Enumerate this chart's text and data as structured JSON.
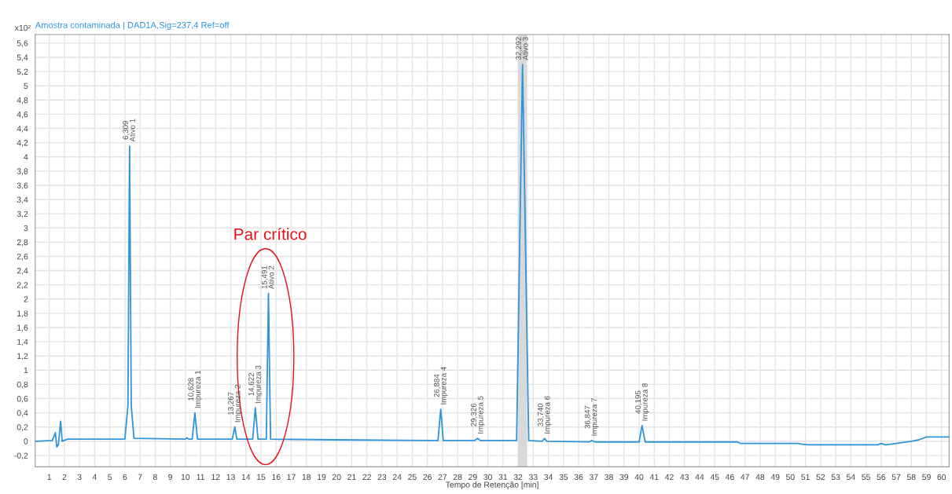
{
  "chart_data": {
    "type": "line",
    "title": "Amostra contaminada | DAD1A,Sig=237,4 Ref=off",
    "xlabel": "Tempo de Retenção [min]",
    "x": [
      0.1,
      1.2,
      1.4,
      1.5,
      1.6,
      1.75,
      1.85,
      2.2,
      6.0,
      6.2,
      6.309,
      6.42,
      6.6,
      10.0,
      10.1,
      10.2,
      10.45,
      10.628,
      10.8,
      13.1,
      13.267,
      13.4,
      14.45,
      14.622,
      14.8,
      15.35,
      15.491,
      15.63,
      20.0,
      26.7,
      26.884,
      27.05,
      29.1,
      29.326,
      29.5,
      31.9,
      32.292,
      32.7,
      33.6,
      33.74,
      33.9,
      36.7,
      36.847,
      37.1,
      40.0,
      40.195,
      40.4,
      46.5,
      46.7,
      50.5,
      50.7,
      51.2,
      55.8,
      56.0,
      56.3,
      57.0,
      58.0,
      58.5,
      59.0,
      60.5
    ],
    "series": [
      {
        "color": "#2f94d8",
        "values": [
          0.0,
          0.01,
          0.12,
          -0.08,
          -0.05,
          0.28,
          0.0,
          0.03,
          0.03,
          0.5,
          4.15,
          0.5,
          0.04,
          0.03,
          0.05,
          0.03,
          0.03,
          0.4,
          0.03,
          0.03,
          0.2,
          0.03,
          0.03,
          0.47,
          0.03,
          0.03,
          2.08,
          0.03,
          0.02,
          0.01,
          0.45,
          0.01,
          0.01,
          0.04,
          0.01,
          0.01,
          5.3,
          0.01,
          0.0,
          0.04,
          0.0,
          -0.01,
          0.01,
          -0.01,
          -0.01,
          0.22,
          -0.01,
          -0.01,
          -0.03,
          -0.03,
          -0.04,
          -0.05,
          -0.05,
          -0.03,
          -0.05,
          -0.03,
          0.0,
          0.02,
          0.06,
          0.06
        ]
      }
    ],
    "xlim": [
      0.07,
      60.5
    ],
    "ylim": [
      -0.36,
      5.72
    ],
    "xticks": [
      1,
      2,
      3,
      4,
      5,
      6,
      7,
      8,
      9,
      10,
      11,
      12,
      13,
      14,
      15,
      16,
      17,
      18,
      19,
      20,
      21,
      22,
      23,
      24,
      25,
      26,
      27,
      28,
      29,
      30,
      31,
      32,
      33,
      34,
      35,
      36,
      37,
      38,
      39,
      40,
      41,
      42,
      43,
      44,
      45,
      46,
      47,
      48,
      49,
      50,
      51,
      52,
      53,
      54,
      55,
      56,
      57,
      58,
      59,
      60
    ],
    "yticks": [
      {
        "value": -0.2,
        "label": "-0,2"
      },
      0,
      {
        "value": 0.2,
        "label": "0,2"
      },
      {
        "value": 0.4,
        "label": "0,4"
      },
      {
        "value": 0.6,
        "label": "0,6"
      },
      {
        "value": 0.8,
        "label": "0,8"
      },
      1,
      {
        "value": 1.2,
        "label": "1,2"
      },
      {
        "value": 1.4,
        "label": "1,4"
      },
      {
        "value": 1.6,
        "label": "1,6"
      },
      {
        "value": 1.8,
        "label": "1,8"
      },
      2,
      {
        "value": 2.2,
        "label": "2,2"
      },
      {
        "value": 2.4,
        "label": "2,4"
      },
      {
        "value": 2.6,
        "label": "2,6"
      },
      {
        "value": 2.8,
        "label": "2,8"
      },
      3,
      {
        "value": 3.2,
        "label": "3,2"
      },
      {
        "value": 3.4,
        "label": "3,4"
      },
      {
        "value": 3.6,
        "label": "3,6"
      },
      {
        "value": 3.8,
        "label": "3,8"
      },
      4,
      {
        "value": 4.2,
        "label": "4,2"
      },
      {
        "value": 4.4,
        "label": "4,4"
      },
      {
        "value": 4.6,
        "label": "4,6"
      },
      {
        "value": 4.8,
        "label": "4,8"
      },
      5,
      {
        "value": 5.2,
        "label": "5,2"
      },
      {
        "value": 5.4,
        "label": "5,4"
      },
      {
        "value": 5.6,
        "label": "5,6"
      }
    ],
    "grid": true,
    "line_style": "solid",
    "marker": "none",
    "bands": [
      {
        "axis": "x",
        "from": 32.0,
        "to": 32.6,
        "color": "#d9d9d9"
      }
    ],
    "annotations": [
      "x10²",
      "Par crítico",
      {
        "text": "6,309\nAtivo 1",
        "x": 6.309,
        "y": 4.15
      },
      {
        "text": "10,628\nImpureza 1",
        "x": 10.628,
        "y": 0.4
      },
      {
        "text": "13,267\nImpureza 2",
        "x": 13.267,
        "y": 0.2
      },
      {
        "text": "14,622\nImpureza 3",
        "x": 14.622,
        "y": 0.47
      },
      {
        "text": "15,491\nAtivo 2",
        "x": 15.491,
        "y": 2.08
      },
      {
        "text": "26,884\nImpureza 4",
        "x": 26.884,
        "y": 0.45
      },
      {
        "text": "29,326\nImpureza 5",
        "x": 29.326,
        "y": 0.04
      },
      {
        "text": "32,292\nAtivo 3",
        "x": 32.292,
        "y": 5.3
      },
      {
        "text": "33,740\nImpureza 6",
        "x": 33.74,
        "y": 0.04
      },
      {
        "text": "36,847\nImpureza 7",
        "x": 36.847,
        "y": 0.01
      },
      {
        "text": "40,195\nImpureza 8",
        "x": 40.195,
        "y": 0.22
      }
    ]
  }
}
